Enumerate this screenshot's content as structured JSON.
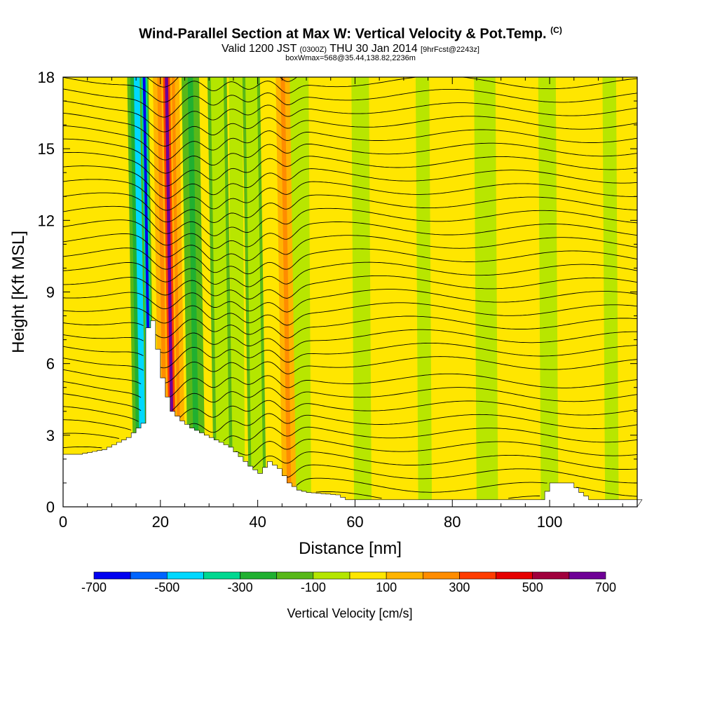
{
  "title": {
    "main": "Wind-Parallel Section at Max W: Vertical Velocity & Pot.Temp.",
    "main_suffix": "(C)",
    "line2_a": "Valid 1200 JST",
    "line2_b": "(0300Z)",
    "line2_c": "THU 30 Jan 2014",
    "line2_d": "[9hrFcst@2243z]",
    "line3": "boxWmax=568@35.44,138.82,2236m"
  },
  "chart_data": {
    "type": "heatmap",
    "xlabel": "Distance [nm]",
    "ylabel": "Height [Kft MSL]",
    "xlim": [
      0,
      118
    ],
    "ylim": [
      0,
      18
    ],
    "x_ticks": [
      0,
      20,
      40,
      60,
      80,
      100
    ],
    "y_ticks": [
      0,
      3,
      6,
      9,
      12,
      15,
      18
    ],
    "colorbar": {
      "label": "Vertical Velocity [cm/s]",
      "bounds": [
        -700,
        -600,
        -500,
        -400,
        -300,
        -200,
        -100,
        0,
        100,
        200,
        300,
        400,
        500,
        600,
        700
      ],
      "tick_labels": [
        "-700",
        "-500",
        "-300",
        "-100",
        "100",
        "300",
        "500",
        "700"
      ],
      "colors": [
        "#0000f0",
        "#0064ff",
        "#00d8ff",
        "#00d890",
        "#20b030",
        "#58b818",
        "#b4e600",
        "#ffe600",
        "#ffb400",
        "#ff8c00",
        "#ff3c00",
        "#e60000",
        "#a0003c",
        "#6e0096"
      ]
    },
    "terrain_kft": {
      "x": [
        0,
        3,
        8,
        13,
        16,
        17,
        18,
        20,
        21,
        22,
        24,
        26,
        30,
        34,
        38,
        40,
        42,
        44,
        46,
        48,
        50,
        56,
        58,
        98,
        100,
        104,
        106,
        108,
        118
      ],
      "y": [
        2.2,
        2.2,
        2.4,
        2.9,
        3.5,
        7.5,
        7.8,
        5.4,
        4.6,
        4.0,
        3.6,
        3.3,
        2.9,
        2.5,
        1.7,
        1.4,
        1.9,
        1.6,
        1.0,
        0.7,
        0.6,
        0.5,
        0.3,
        0.3,
        1.0,
        1.0,
        0.6,
        0.3,
        0.3
      ]
    },
    "bands": [
      {
        "x": 16.5,
        "width": 2.2,
        "velocity": -500
      },
      {
        "x": 18.0,
        "width": 1.0,
        "velocity": -700
      },
      {
        "x": 22.5,
        "width": 3.0,
        "velocity": 400
      },
      {
        "x": 22.6,
        "width": 1.2,
        "velocity": 600
      },
      {
        "x": 27.5,
        "width": 2.0,
        "velocity": -300
      },
      {
        "x": 33.0,
        "width": 2.2,
        "velocity": -100
      },
      {
        "x": 40.0,
        "width": 2.0,
        "velocity": -100
      },
      {
        "x": 46.5,
        "width": 1.6,
        "velocity": 200
      }
    ],
    "theta_line_count": 34
  }
}
